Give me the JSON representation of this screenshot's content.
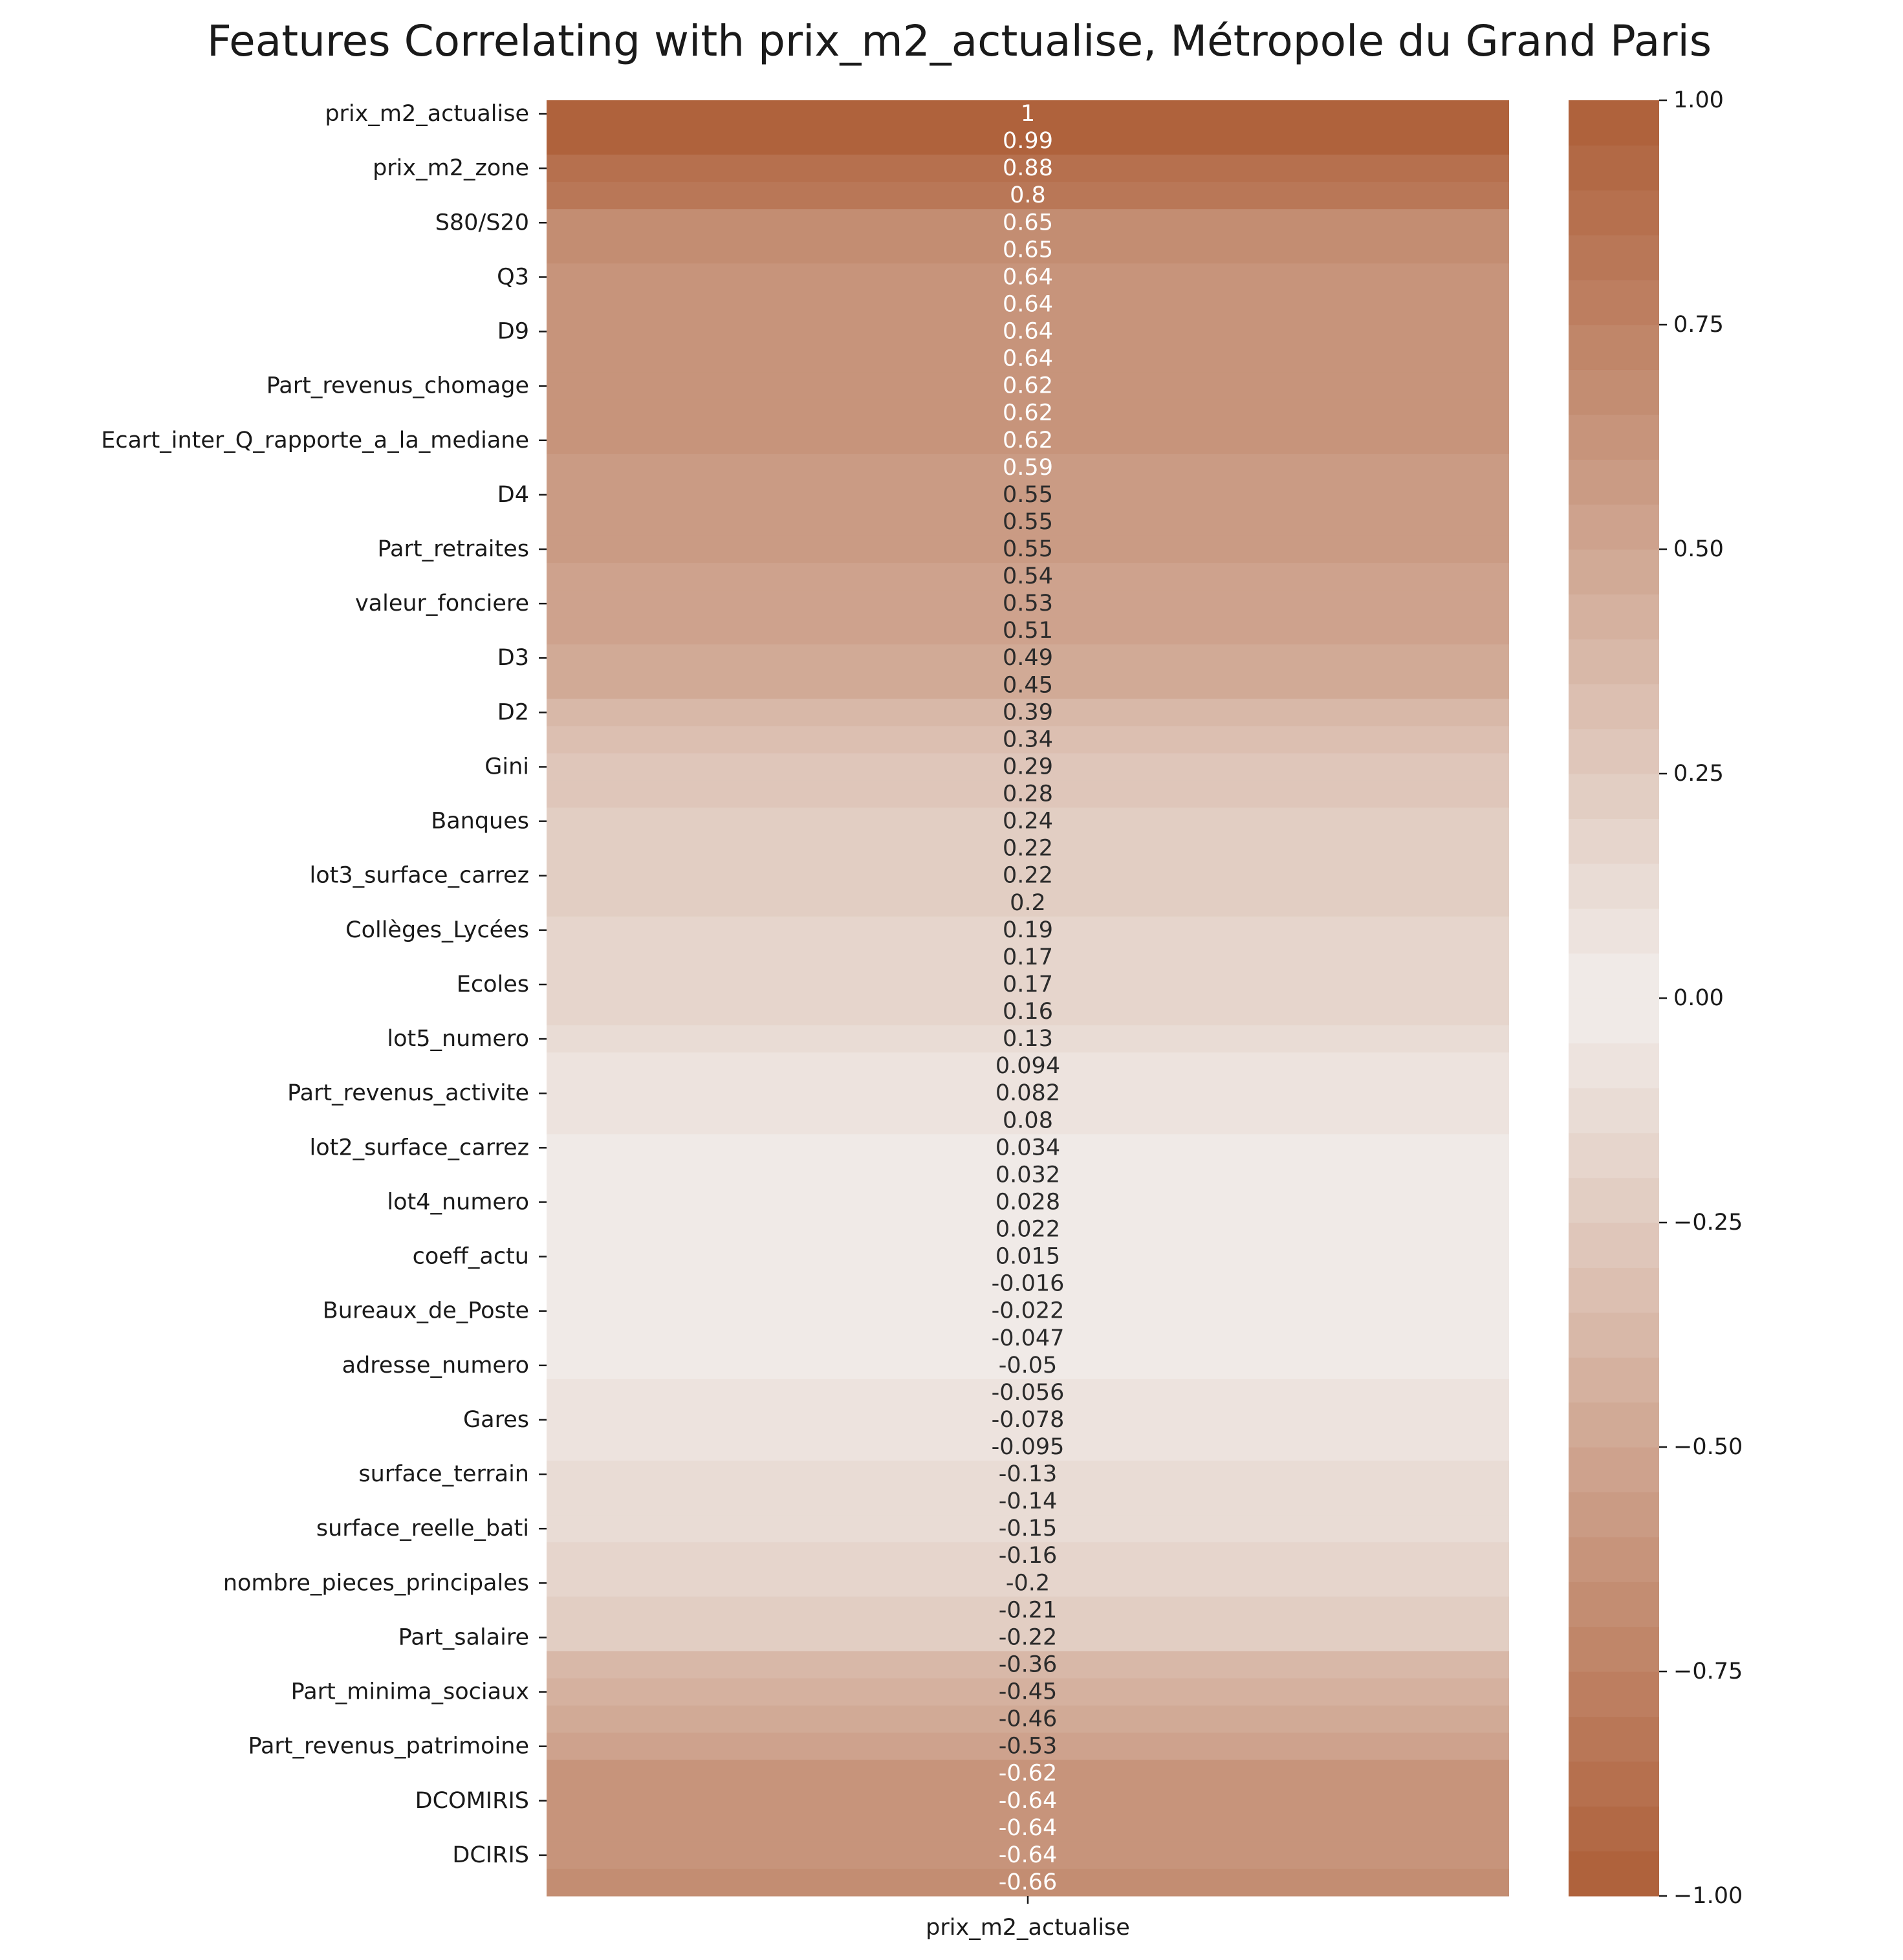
{
  "chart_data": {
    "type": "heatmap",
    "title": "Features Correlating with prix_m2_actualise, Métropole du Grand Paris",
    "column": "prix_m2_actualise",
    "values": [
      "1",
      "0.99",
      "0.88",
      "0.8",
      "0.65",
      "0.65",
      "0.64",
      "0.64",
      "0.64",
      "0.64",
      "0.62",
      "0.62",
      "0.62",
      "0.59",
      "0.55",
      "0.55",
      "0.55",
      "0.54",
      "0.53",
      "0.51",
      "0.49",
      "0.45",
      "0.39",
      "0.34",
      "0.29",
      "0.28",
      "0.24",
      "0.22",
      "0.22",
      "0.2",
      "0.19",
      "0.17",
      "0.17",
      "0.16",
      "0.13",
      "0.094",
      "0.082",
      "0.08",
      "0.034",
      "0.032",
      "0.028",
      "0.022",
      "0.015",
      "-0.016",
      "-0.022",
      "-0.047",
      "-0.05",
      "-0.056",
      "-0.078",
      "-0.095",
      "-0.13",
      "-0.14",
      "-0.15",
      "-0.16",
      "-0.2",
      "-0.21",
      "-0.22",
      "-0.36",
      "-0.45",
      "-0.46",
      "-0.53",
      "-0.62",
      "-0.64",
      "-0.64",
      "-0.64",
      "-0.66"
    ],
    "row_tick_labels": [
      {
        "row": 0,
        "label": "prix_m2_actualise"
      },
      {
        "row": 2,
        "label": "prix_m2_zone"
      },
      {
        "row": 4,
        "label": "S80/S20"
      },
      {
        "row": 6,
        "label": "Q3"
      },
      {
        "row": 8,
        "label": "D9"
      },
      {
        "row": 10,
        "label": "Part_revenus_chomage"
      },
      {
        "row": 12,
        "label": "Ecart_inter_Q_rapporte_a_la_mediane"
      },
      {
        "row": 14,
        "label": "D4"
      },
      {
        "row": 16,
        "label": "Part_retraites"
      },
      {
        "row": 18,
        "label": "valeur_fonciere"
      },
      {
        "row": 20,
        "label": "D3"
      },
      {
        "row": 22,
        "label": "D2"
      },
      {
        "row": 24,
        "label": "Gini"
      },
      {
        "row": 26,
        "label": "Banques"
      },
      {
        "row": 28,
        "label": "lot3_surface_carrez"
      },
      {
        "row": 30,
        "label": "Collèges_Lycées"
      },
      {
        "row": 32,
        "label": "Ecoles"
      },
      {
        "row": 34,
        "label": "lot5_numero"
      },
      {
        "row": 36,
        "label": "Part_revenus_activite"
      },
      {
        "row": 38,
        "label": "lot2_surface_carrez"
      },
      {
        "row": 40,
        "label": "lot4_numero"
      },
      {
        "row": 42,
        "label": "coeff_actu"
      },
      {
        "row": 44,
        "label": "Bureaux_de_Poste"
      },
      {
        "row": 46,
        "label": "adresse_numero"
      },
      {
        "row": 48,
        "label": "Gares"
      },
      {
        "row": 50,
        "label": "surface_terrain"
      },
      {
        "row": 52,
        "label": "surface_reelle_bati"
      },
      {
        "row": 54,
        "label": "nombre_pieces_principales"
      },
      {
        "row": 56,
        "label": "Part_salaire"
      },
      {
        "row": 58,
        "label": "Part_minima_sociaux"
      },
      {
        "row": 60,
        "label": "Part_revenus_patrimoine"
      },
      {
        "row": 62,
        "label": "DCOMIRIS"
      },
      {
        "row": 64,
        "label": "DCIRIS"
      }
    ],
    "colorbar": {
      "range": [
        -1,
        1
      ],
      "ticks": [
        1.0,
        0.75,
        0.5,
        0.25,
        0.0,
        -0.25,
        -0.5,
        -0.75,
        -1.0
      ],
      "tick_labels": [
        "1.00",
        "0.75",
        "0.50",
        "0.25",
        "0.00",
        "−0.25",
        "−0.50",
        "−0.75",
        "−1.00"
      ],
      "levels": 40,
      "colors": {
        "extreme": "#ad5e37",
        "center": "#f2eeec"
      }
    },
    "annotation_colors": {
      "dark": "#2b2b2b",
      "light": "#ffffff"
    }
  }
}
